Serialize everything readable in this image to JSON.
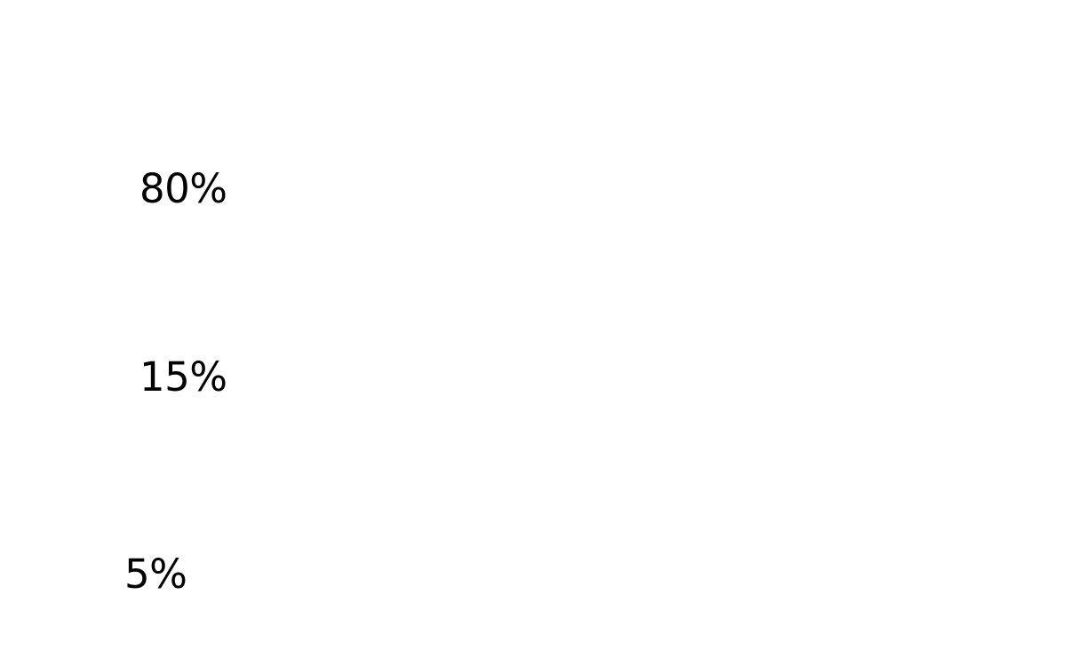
{
  "labels": [
    {
      "text": "80%"
    },
    {
      "text": "15%"
    },
    {
      "text": "5%"
    }
  ]
}
